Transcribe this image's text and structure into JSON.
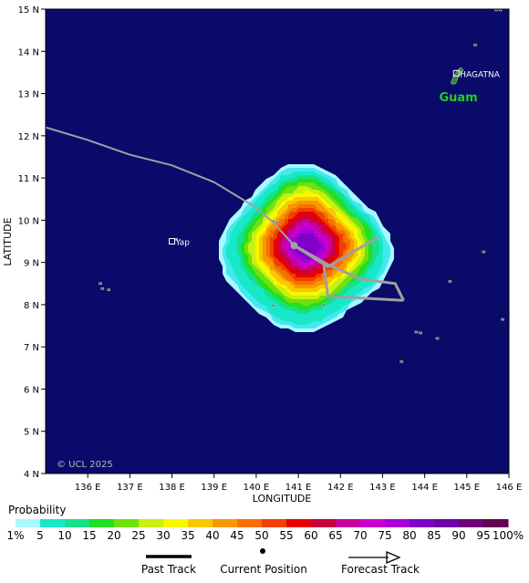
{
  "map": {
    "copyright": "© UCL 2025",
    "x_axis_title": "LONGITUDE",
    "y_axis_title": "LATITUDE",
    "lon_ticks": [
      "136 E",
      "137 E",
      "138 E",
      "139 E",
      "140 E",
      "141 E",
      "142 E",
      "143 E",
      "144 E",
      "145 E",
      "146 E"
    ],
    "lat_ticks": [
      "15 N",
      "14 N",
      "13 N",
      "12 N",
      "11 N",
      "10 N",
      "9 N",
      "8 N",
      "7 N",
      "6 N",
      "5 N",
      "4 N"
    ],
    "lon_range": [
      135,
      146
    ],
    "lat_range": [
      4,
      15
    ],
    "ocean_color": "#0a0a6b",
    "land_color": "#2e8b2e",
    "places": [
      {
        "name": "HAGATNA",
        "lon": 144.75,
        "lat": 13.48,
        "marker": "square",
        "label_color": "#ffffff"
      },
      {
        "name": "Yap",
        "lon": 138.0,
        "lat": 9.5,
        "marker": "square",
        "label_color": "#ffffff"
      }
    ],
    "region_labels": [
      {
        "name": "Guam",
        "lon": 144.8,
        "lat": 12.9,
        "color": "#22cc22"
      }
    ],
    "past_track": [
      [
        135.0,
        12.2
      ],
      [
        136.0,
        11.9
      ],
      [
        137.0,
        11.55
      ],
      [
        138.0,
        11.3
      ],
      [
        139.0,
        10.9
      ],
      [
        140.0,
        10.3
      ],
      [
        140.4,
        9.95
      ],
      [
        140.9,
        9.4
      ]
    ],
    "current_position": {
      "lon": 140.9,
      "lat": 9.4
    },
    "forecast_tracks": [
      [
        [
          140.9,
          9.4
        ],
        [
          141.7,
          8.95
        ],
        [
          142.5,
          8.6
        ],
        [
          143.3,
          8.5
        ],
        [
          143.5,
          8.1
        ]
      ],
      [
        [
          140.9,
          9.4
        ],
        [
          141.6,
          9.0
        ],
        [
          141.7,
          8.2
        ],
        [
          143.5,
          8.1
        ]
      ],
      [
        [
          140.9,
          9.4
        ],
        [
          141.7,
          8.9
        ],
        [
          142.9,
          9.6
        ]
      ]
    ],
    "probability_center": {
      "lon": 141.2,
      "lat": 9.4
    },
    "track_color": "#a0a0a0"
  },
  "legend": {
    "title": "Probability",
    "scale": [
      {
        "label": "1%",
        "color": "#a8f8ff"
      },
      {
        "label": "5",
        "color": "#44e8f0"
      },
      {
        "label": "10",
        "color": "#18e8c8"
      },
      {
        "label": "15",
        "color": "#18e088"
      },
      {
        "label": "20",
        "color": "#20e020"
      },
      {
        "label": "25",
        "color": "#70e010"
      },
      {
        "label": "30",
        "color": "#c8f010"
      },
      {
        "label": "35",
        "color": "#f8f800"
      },
      {
        "label": "40",
        "color": "#f8c800"
      },
      {
        "label": "45",
        "color": "#f89800"
      },
      {
        "label": "50",
        "color": "#f87000"
      },
      {
        "label": "55",
        "color": "#f04000"
      },
      {
        "label": "60",
        "color": "#e80000"
      },
      {
        "label": "65",
        "color": "#c80040"
      },
      {
        "label": "70",
        "color": "#c8009c"
      },
      {
        "label": "75",
        "color": "#c800d0"
      },
      {
        "label": "80",
        "color": "#a800d8"
      },
      {
        "label": "85",
        "color": "#8000c8"
      },
      {
        "label": "90",
        "color": "#7000a8"
      },
      {
        "label": "95",
        "color": "#700078"
      },
      {
        "label": "100%",
        "color": "#600050"
      }
    ],
    "keys": {
      "past_track": "Past Track",
      "current_position": "Current Position",
      "forecast_track": "Forecast Track"
    }
  }
}
